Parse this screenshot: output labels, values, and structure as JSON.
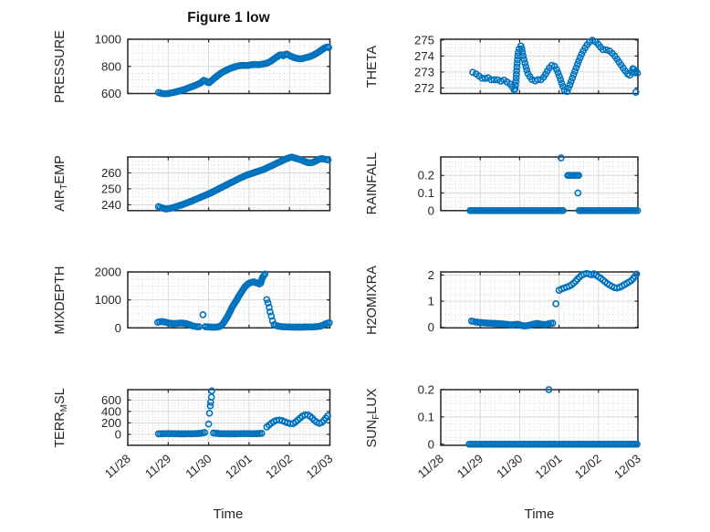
{
  "figure": {
    "title": "Figure 1 low",
    "xlabel": "Time",
    "x_tick_labels": [
      "11/28",
      "11/29",
      "11/30",
      "12/01",
      "12/02",
      "12/03"
    ],
    "marker_color": "#0072BD",
    "axis_color": "#262626",
    "major_grid_color": "#d9d9d9",
    "minor_grid_color": "#cfcfcf",
    "text_color": "#262626",
    "background_color": "#ffffff"
  },
  "chart_data": [
    {
      "type": "scatter",
      "name": "PRESSURE",
      "label_parts": [
        {
          "text": "PRESSURE",
          "sub": false
        }
      ],
      "col": 0,
      "row": 0,
      "ylim": [
        600,
        1000
      ],
      "yticks": [
        600,
        800,
        1000
      ],
      "yminor": 50,
      "xlim_days": [
        0,
        5
      ],
      "runs": [
        {
          "dense": true,
          "gap": 2.2,
          "x": [
            0.76,
            0.82,
            0.9,
            1.0,
            1.1,
            1.2,
            1.3,
            1.4,
            1.5,
            1.6,
            1.7,
            1.8,
            1.88,
            1.94,
            2.0,
            2.06,
            2.14,
            2.24,
            2.34,
            2.44,
            2.54,
            2.64,
            2.74,
            2.84,
            2.94,
            3.04,
            3.14,
            3.24,
            3.34,
            3.44,
            3.54,
            3.62,
            3.7,
            3.78,
            3.85,
            3.92,
            4.0,
            4.1,
            4.2,
            4.3,
            4.4,
            4.5,
            4.6,
            4.7,
            4.8,
            4.88,
            4.95,
            5.0
          ],
          "y": [
            608,
            602,
            598,
            600,
            606,
            613,
            621,
            630,
            641,
            652,
            664,
            678,
            697,
            690,
            678,
            691,
            712,
            736,
            757,
            772,
            786,
            796,
            804,
            808,
            806,
            811,
            814,
            812,
            817,
            823,
            838,
            856,
            872,
            888,
            879,
            893,
            880,
            866,
            858,
            856,
            864,
            872,
            884,
            902,
            922,
            938,
            945,
            929
          ]
        }
      ]
    },
    {
      "type": "scatter",
      "name": "AIR_TEMP",
      "label_parts": [
        {
          "text": "AIR",
          "sub": false
        },
        {
          "text": "T",
          "sub": true
        },
        {
          "text": "EMP",
          "sub": false
        }
      ],
      "col": 0,
      "row": 1,
      "ylim": [
        236.3,
        270
      ],
      "yticks": [
        240,
        250,
        260
      ],
      "yminor": 2.5,
      "xlim_days": [
        0,
        5
      ],
      "runs": [
        {
          "dense": true,
          "gap": 2.2,
          "x": [
            0.76,
            0.85,
            0.95,
            1.05,
            1.15,
            1.3,
            1.45,
            1.6,
            1.75,
            1.9,
            2.05,
            2.2,
            2.35,
            2.5,
            2.65,
            2.8,
            2.95,
            3.1,
            3.2,
            3.3,
            3.4,
            3.5,
            3.6,
            3.7,
            3.8,
            3.9,
            4.0,
            4.06,
            4.12,
            4.2,
            4.3,
            4.4,
            4.5,
            4.6,
            4.7,
            4.78,
            4.86,
            4.94,
            5.0
          ],
          "y": [
            238.8,
            237.9,
            237.3,
            237.7,
            238.4,
            239.6,
            241.0,
            242.5,
            244.1,
            245.7,
            247.4,
            249.3,
            251.3,
            253.2,
            255.1,
            257.0,
            258.7,
            259.9,
            260.8,
            261.6,
            262.6,
            263.8,
            265.0,
            266.2,
            267.4,
            268.6,
            269.6,
            269.9,
            269.4,
            268.8,
            268.0,
            266.9,
            266.2,
            266.8,
            268.2,
            269.0,
            268.7,
            268.2,
            267.8
          ]
        }
      ]
    },
    {
      "type": "scatter",
      "name": "MIXDEPTH",
      "label_parts": [
        {
          "text": "MIXDEPTH",
          "sub": false
        }
      ],
      "col": 0,
      "row": 2,
      "ylim": [
        0,
        2000
      ],
      "yticks": [
        0,
        1000,
        2000
      ],
      "yminor": 250,
      "xlim_days": [
        0,
        5
      ],
      "runs": [
        {
          "dense": true,
          "gap": 2.2,
          "x": [
            0.74,
            0.82,
            0.92,
            1.02,
            1.12,
            1.22,
            1.32,
            1.42,
            1.52,
            1.62,
            1.72,
            1.8
          ],
          "y": [
            200,
            228,
            208,
            172,
            152,
            162,
            174,
            158,
            118,
            62,
            42,
            36
          ]
        },
        {
          "dense": false,
          "x": [
            1.86
          ],
          "y": [
            470
          ]
        },
        {
          "dense": true,
          "gap": 2.2,
          "x": [
            1.92,
            2.02,
            2.12,
            2.22,
            2.3,
            2.38,
            2.45,
            2.52,
            2.6,
            2.68,
            2.75,
            2.83,
            2.9,
            2.98,
            3.05,
            3.12,
            3.18,
            3.24,
            3.28,
            3.33,
            3.37,
            3.41
          ],
          "y": [
            44,
            30,
            24,
            30,
            58,
            200,
            360,
            550,
            790,
            960,
            1140,
            1320,
            1470,
            1580,
            1625,
            1645,
            1615,
            1580,
            1565,
            1790,
            1880,
            1960
          ]
        },
        {
          "dense": false,
          "x": [
            3.44,
            3.47,
            3.5,
            3.52,
            3.55,
            3.58
          ],
          "y": [
            1010,
            890,
            730,
            570,
            420,
            250
          ]
        },
        {
          "dense": true,
          "gap": 2.2,
          "x": [
            3.62,
            3.72,
            3.82,
            4.0,
            4.2,
            4.4,
            4.6,
            4.75,
            4.85,
            4.92,
            5.0
          ],
          "y": [
            110,
            60,
            40,
            30,
            25,
            30,
            35,
            55,
            110,
            160,
            190
          ]
        }
      ]
    },
    {
      "type": "scatter",
      "name": "TERR_MSL",
      "label_parts": [
        {
          "text": "TERR",
          "sub": false
        },
        {
          "text": "M",
          "sub": true
        },
        {
          "text": "SL",
          "sub": false
        }
      ],
      "col": 0,
      "row": 3,
      "ylim": [
        -190,
        780
      ],
      "yticks": [
        0,
        200,
        400,
        600
      ],
      "yminor": 50,
      "xlim_days": [
        0,
        5
      ],
      "runs": [
        {
          "dense": true,
          "gap": 2.2,
          "x": [
            0.76,
            1.0,
            1.3,
            1.6,
            1.8,
            1.88,
            1.94
          ],
          "y": [
            10,
            14,
            10,
            12,
            18,
            28,
            40
          ]
        },
        {
          "dense": false,
          "x": [
            2.0,
            2.02,
            2.04,
            2.05,
            2.07,
            2.08
          ],
          "y": [
            180,
            370,
            500,
            560,
            650,
            760
          ]
        },
        {
          "dense": true,
          "gap": 2.2,
          "x": [
            2.12,
            2.3,
            2.6,
            2.9,
            3.1,
            3.25,
            3.33
          ],
          "y": [
            25,
            12,
            10,
            14,
            12,
            16,
            20
          ]
        },
        {
          "dense": true,
          "gap": 3.2,
          "x": [
            3.44,
            3.52,
            3.6,
            3.68,
            3.76,
            3.84,
            3.92,
            4.0,
            4.08,
            4.16,
            4.24,
            4.32,
            4.4,
            4.46,
            4.54,
            4.62,
            4.7,
            4.76,
            4.82,
            4.88,
            4.94,
            5.0
          ],
          "y": [
            130,
            180,
            220,
            245,
            250,
            235,
            210,
            190,
            185,
            220,
            270,
            320,
            345,
            340,
            300,
            240,
            200,
            190,
            220,
            270,
            320,
            340
          ]
        }
      ]
    },
    {
      "type": "scatter",
      "name": "THETA",
      "label_parts": [
        {
          "text": "THETA",
          "sub": false
        }
      ],
      "col": 1,
      "row": 0,
      "ylim": [
        271.65,
        275.05
      ],
      "yticks": [
        272,
        273,
        274,
        275
      ],
      "yminor": 0.25,
      "xlim_days": [
        0,
        5
      ],
      "runs": [
        {
          "dense": true,
          "gap": 4.0,
          "x": [
            0.81,
            0.88,
            0.95,
            1.03,
            1.1,
            1.17,
            1.24,
            1.31,
            1.38,
            1.45,
            1.52,
            1.59,
            1.66,
            1.73,
            1.8,
            1.84,
            1.88,
            1.91,
            1.93,
            1.95,
            1.97,
            2.0,
            2.04,
            2.08,
            2.12,
            2.16,
            2.2,
            2.26,
            2.32,
            2.38,
            2.44,
            2.5,
            2.56,
            2.62,
            2.68,
            2.74,
            2.79,
            2.84,
            2.89,
            2.94,
            2.99,
            3.04,
            3.09,
            3.14,
            3.2,
            3.26,
            3.32,
            3.38,
            3.44,
            3.5,
            3.56,
            3.62,
            3.68,
            3.74,
            3.8,
            3.87,
            3.94,
            4.01,
            4.08,
            4.15,
            4.22,
            4.29,
            4.36,
            4.43,
            4.5,
            4.57,
            4.64,
            4.71,
            4.78,
            4.84,
            4.88,
            4.92,
            4.96,
            5.0
          ],
          "y": [
            272.98,
            272.9,
            272.8,
            272.62,
            272.55,
            272.68,
            272.58,
            272.45,
            272.55,
            272.5,
            272.42,
            272.52,
            272.4,
            272.3,
            272.15,
            271.95,
            271.8,
            272.6,
            273.3,
            273.9,
            274.3,
            274.55,
            274.65,
            274.1,
            273.7,
            273.3,
            272.95,
            272.7,
            272.5,
            272.42,
            272.55,
            272.45,
            272.55,
            272.7,
            272.95,
            273.2,
            273.38,
            273.45,
            273.35,
            273.15,
            272.85,
            272.5,
            272.15,
            271.85,
            271.75,
            272.1,
            272.5,
            272.9,
            273.3,
            273.7,
            274.05,
            274.35,
            274.6,
            274.8,
            274.95,
            275.0,
            274.85,
            274.7,
            274.45,
            274.35,
            274.4,
            274.3,
            274.15,
            273.95,
            273.7,
            273.45,
            273.2,
            272.95,
            272.75,
            272.95,
            273.3,
            272.9,
            273.1,
            272.85
          ]
        },
        {
          "dense": false,
          "x": [
            4.95
          ],
          "y": [
            271.73
          ]
        }
      ]
    },
    {
      "type": "scatter",
      "name": "RAINFALL",
      "label_parts": [
        {
          "text": "RAINFALL",
          "sub": false
        }
      ],
      "col": 1,
      "row": 1,
      "ylim": [
        0,
        0.305
      ],
      "yticks": [
        0,
        0.1,
        0.2
      ],
      "yminor": 0.025,
      "xlim_days": [
        0,
        5
      ],
      "runs": [
        {
          "dense": true,
          "gap": 2.0,
          "x": [
            0.74,
            3.12
          ],
          "y": [
            0,
            0
          ]
        },
        {
          "dense": false,
          "x": [
            3.05
          ],
          "y": [
            0.3
          ]
        },
        {
          "dense": false,
          "x": [
            3.22,
            3.26,
            3.3,
            3.34,
            3.38,
            3.42,
            3.46,
            3.5
          ],
          "y": [
            0.2,
            0.2,
            0.2,
            0.2,
            0.2,
            0.2,
            0.2,
            0.2
          ]
        },
        {
          "dense": false,
          "x": [
            3.48
          ],
          "y": [
            0.1
          ]
        },
        {
          "dense": true,
          "gap": 2.0,
          "x": [
            3.51,
            5.0
          ],
          "y": [
            0,
            0
          ]
        }
      ]
    },
    {
      "type": "scatter",
      "name": "H2OMIXRA",
      "label_parts": [
        {
          "text": "H2OMIXRA",
          "sub": false
        }
      ],
      "col": 1,
      "row": 2,
      "ylim": [
        -0.02,
        2.12
      ],
      "yticks": [
        0,
        1,
        2
      ],
      "yminor": 0.25,
      "xlim_days": [
        0,
        5
      ],
      "runs": [
        {
          "dense": true,
          "gap": 2.2,
          "x": [
            0.78,
            0.9,
            1.05,
            1.2,
            1.35,
            1.5,
            1.65,
            1.8,
            1.95,
            2.05,
            2.15,
            2.25,
            2.35,
            2.45,
            2.55,
            2.65,
            2.75,
            2.87
          ],
          "y": [
            0.24,
            0.2,
            0.18,
            0.16,
            0.15,
            0.14,
            0.12,
            0.09,
            0.12,
            0.07,
            0.05,
            0.08,
            0.12,
            0.15,
            0.12,
            0.1,
            0.14,
            0.17
          ]
        },
        {
          "dense": false,
          "x": [
            2.92
          ],
          "y": [
            0.9
          ]
        },
        {
          "dense": true,
          "gap": 3.0,
          "x": [
            3.0,
            3.08,
            3.16,
            3.24,
            3.32,
            3.4,
            3.48,
            3.56,
            3.64,
            3.72,
            3.8,
            3.88,
            3.96,
            4.04,
            4.12,
            4.2,
            4.28,
            4.36,
            4.44,
            4.52,
            4.6,
            4.68,
            4.76,
            4.84,
            4.9,
            4.95,
            5.0
          ],
          "y": [
            1.42,
            1.48,
            1.52,
            1.56,
            1.63,
            1.73,
            1.87,
            1.98,
            2.04,
            2.07,
            2.0,
            2.05,
            1.97,
            1.9,
            1.8,
            1.7,
            1.62,
            1.55,
            1.5,
            1.52,
            1.58,
            1.65,
            1.72,
            1.8,
            1.9,
            2.0,
            2.1
          ]
        }
      ]
    },
    {
      "type": "scatter",
      "name": "SUN_FLUX",
      "label_parts": [
        {
          "text": "SUN",
          "sub": false
        },
        {
          "text": "F",
          "sub": true
        },
        {
          "text": "LUX",
          "sub": false
        }
      ],
      "col": 1,
      "row": 3,
      "ylim": [
        -0.004,
        0.2
      ],
      "yticks": [
        0,
        0.1,
        0.2
      ],
      "yminor": 0.025,
      "xlim_days": [
        0,
        5
      ],
      "runs": [
        {
          "dense": true,
          "gap": 2.0,
          "x": [
            0.72,
            5.0
          ],
          "y": [
            0,
            0
          ]
        },
        {
          "dense": false,
          "x": [
            2.74
          ],
          "y": [
            0.2
          ]
        }
      ]
    }
  ]
}
